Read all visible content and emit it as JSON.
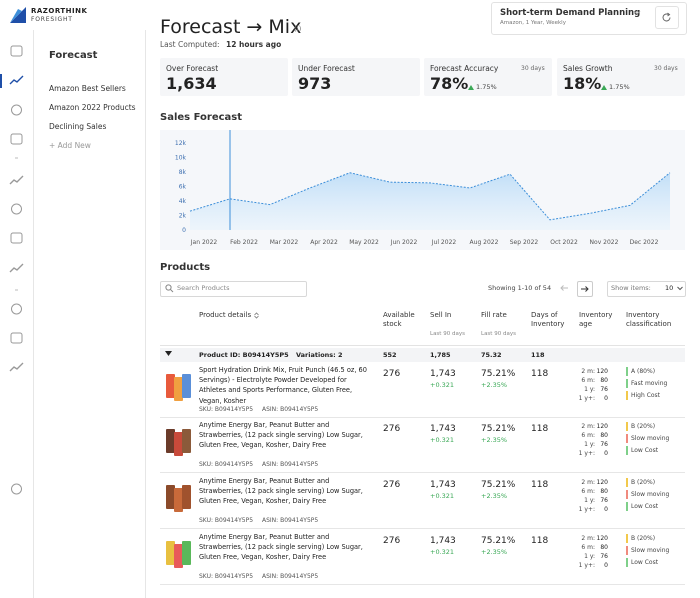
{
  "brand": {
    "name": "RAZORTHINK",
    "sub": "FORESIGHT"
  },
  "sidebar": {
    "title": "Forecast",
    "items": [
      "Amazon Best Sellers",
      "Amazon 2022 Products",
      "Declining Sales"
    ],
    "add": "+ Add New"
  },
  "header": {
    "title": "Forecast → Mix",
    "info": "(i)",
    "computed_label": "Last Computed:",
    "computed_value": "12 hours ago"
  },
  "plan": {
    "title": "Short-term Demand Planning",
    "subtitle": "Amazon, 1 Year, Weekly"
  },
  "kpis": [
    {
      "label": "Over Forecast",
      "value": "1,634"
    },
    {
      "label": "Under Forecast",
      "value": "973"
    },
    {
      "label": "Forecast Accuracy",
      "period": "30 days",
      "value": "78%",
      "change": "1.75%"
    },
    {
      "label": "Sales Growth",
      "period": "30 days",
      "value": "18%",
      "change": "1.75%"
    }
  ],
  "chart_data": {
    "type": "line",
    "title": "Sales Forecast",
    "x": [
      0,
      1,
      2,
      3,
      4,
      5,
      6,
      7,
      8,
      9,
      10,
      11,
      12
    ],
    "values": [
      2600,
      4300,
      3500,
      5800,
      7900,
      6600,
      6500,
      5800,
      7700,
      1400,
      2300,
      3400,
      7900
    ],
    "color": "#3d8fd9",
    "xlim": [
      0,
      12
    ],
    "ylim": [
      0,
      12000
    ],
    "yticks": [
      0,
      {
        "value": 2000,
        "label": "2k"
      },
      {
        "value": 4000,
        "label": "4k"
      },
      {
        "value": 6000,
        "label": "6k"
      },
      {
        "value": 8000,
        "label": "8k"
      },
      {
        "value": 10000,
        "label": "10k"
      },
      {
        "value": 12000,
        "label": "12k"
      }
    ],
    "xticks": [
      {
        "value": 0.35,
        "label": "Jan 2022"
      },
      {
        "value": 1.35,
        "label": "Feb 2022"
      },
      {
        "value": 2.35,
        "label": "Mar 2022"
      },
      {
        "value": 3.35,
        "label": "Apr 2022"
      },
      {
        "value": 4.35,
        "label": "May 2022"
      },
      {
        "value": 5.35,
        "label": "Jun 2022"
      },
      {
        "value": 6.35,
        "label": "Jul 2022"
      },
      {
        "value": 7.35,
        "label": "Aug 2022"
      },
      {
        "value": 8.35,
        "label": "Sep 2022"
      },
      {
        "value": 9.35,
        "label": "Oct 2022"
      },
      {
        "value": 10.35,
        "label": "Nov 2022"
      },
      {
        "value": 11.35,
        "label": "Dec 2022"
      }
    ],
    "marker_x": 1
  },
  "products": {
    "title": "Products",
    "search": "Search Products",
    "showing": "Showing 1-10 of 54",
    "show_items_label": "Show items:",
    "show_items_value": "10",
    "columns": [
      {
        "title": "Product details"
      },
      {
        "title": "Available stock"
      },
      {
        "title": "Sell In",
        "sub": "Last 90 days"
      },
      {
        "title": "Fill rate",
        "sub": "Last 90 days"
      },
      {
        "title": "Days of Inventory"
      },
      {
        "title": "Inventory age"
      },
      {
        "title": "Inventory classification"
      }
    ],
    "group": {
      "id": "Product ID: B09414Y5P5",
      "variations": "Variations: 2",
      "stock": "552",
      "sell_in": "1,785",
      "fill_rate": "75.32",
      "days": "118"
    },
    "rows": [
      {
        "name": "Sport Hydration Drink Mix, Fruit Punch (46.5 oz, 60 Servings) - Electrolyte Powder Developed for Athletes and Sports Performance, Gluten Free, Vegan, Kosher",
        "sku": "SKU: B09414Y5P5",
        "asin": "ASIN: B09414Y5P5",
        "stock": "276",
        "sell_in": "1,743",
        "sell_in_change": "+0.321",
        "fill_rate": "75.21%",
        "fill_rate_change": "+2.35%",
        "days": "118",
        "age": [
          {
            "label": "2 m:",
            "value": "120"
          },
          {
            "label": "6 m:",
            "value": "80"
          },
          {
            "label": "1 y:",
            "value": "76"
          },
          {
            "label": "1 y+:",
            "value": "0"
          }
        ],
        "class": [
          {
            "text": "A (80%)",
            "color": "#7fd08a"
          },
          {
            "text": "Fast moving",
            "color": "#7fd08a"
          },
          {
            "text": "High Cost",
            "color": "#f2c94c"
          }
        ]
      },
      {
        "name": "Anytime Energy Bar, Peanut Butter and Strawberries, (12 pack single serving) Low Sugar, Gluten Free, Vegan, Kosher, Dairy Free",
        "sku": "SKU: B09414Y5P5",
        "asin": "ASIN: B09414Y5P5",
        "stock": "276",
        "sell_in": "1,743",
        "sell_in_change": "+0.321",
        "fill_rate": "75.21%",
        "fill_rate_change": "+2.35%",
        "days": "118",
        "age": [
          {
            "label": "2 m:",
            "value": "120"
          },
          {
            "label": "6 m:",
            "value": "80"
          },
          {
            "label": "1 y:",
            "value": "76"
          },
          {
            "label": "1 y+:",
            "value": "0"
          }
        ],
        "class": [
          {
            "text": "B (20%)",
            "color": "#f2c94c"
          },
          {
            "text": "Slow moving",
            "color": "#f08a7e"
          },
          {
            "text": "Low Cost",
            "color": "#7fd08a"
          }
        ]
      },
      {
        "name": "Anytime Energy Bar, Peanut Butter and Strawberries, (12 pack single serving) Low Sugar, Gluten Free, Vegan, Kosher, Dairy Free",
        "sku": "SKU: B09414Y5P5",
        "asin": "ASIN: B09414Y5P5",
        "stock": "276",
        "sell_in": "1,743",
        "sell_in_change": "+0.321",
        "fill_rate": "75.21%",
        "fill_rate_change": "+2.35%",
        "days": "118",
        "age": [
          {
            "label": "2 m:",
            "value": "120"
          },
          {
            "label": "6 m:",
            "value": "80"
          },
          {
            "label": "1 y:",
            "value": "76"
          },
          {
            "label": "1 y+:",
            "value": "0"
          }
        ],
        "class": [
          {
            "text": "B (20%)",
            "color": "#f2c94c"
          },
          {
            "text": "Slow moving",
            "color": "#f08a7e"
          },
          {
            "text": "Low Cost",
            "color": "#7fd08a"
          }
        ]
      },
      {
        "name": "Anytime Energy Bar, Peanut Butter and Strawberries, (12 pack single serving) Low Sugar, Gluten Free, Vegan, Kosher, Dairy Free",
        "sku": "SKU: B09414Y5P5",
        "asin": "ASIN: B09414Y5P5",
        "stock": "276",
        "sell_in": "1,743",
        "sell_in_change": "+0.321",
        "fill_rate": "75.21%",
        "fill_rate_change": "+2.35%",
        "days": "118",
        "age": [
          {
            "label": "2 m:",
            "value": "120"
          },
          {
            "label": "6 m:",
            "value": "80"
          },
          {
            "label": "1 y:",
            "value": "76"
          },
          {
            "label": "1 y+:",
            "value": "0"
          }
        ],
        "class": [
          {
            "text": "B (20%)",
            "color": "#f2c94c"
          },
          {
            "text": "Slow moving",
            "color": "#f08a7e"
          },
          {
            "text": "Low Cost",
            "color": "#7fd08a"
          }
        ]
      }
    ]
  }
}
